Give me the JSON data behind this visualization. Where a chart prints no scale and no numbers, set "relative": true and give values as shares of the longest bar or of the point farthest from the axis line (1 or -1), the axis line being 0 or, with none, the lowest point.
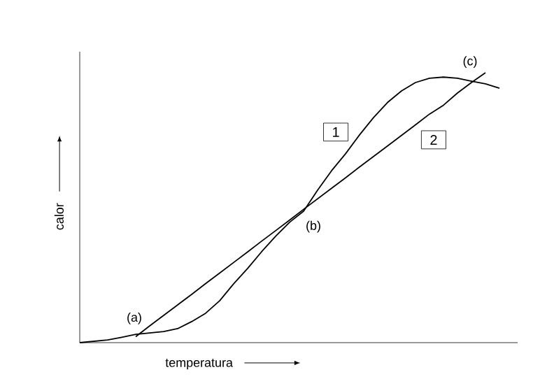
{
  "chart_data": {
    "type": "line",
    "relative": true,
    "xlabel": "temperatura",
    "ylabel": "calor",
    "categories": [
      null,
      null,
      null,
      null,
      null,
      null,
      null,
      null,
      null,
      null,
      null,
      null,
      null,
      null,
      null,
      null,
      null,
      null,
      null,
      null,
      null,
      null,
      null,
      null,
      null,
      null,
      null,
      null,
      null,
      null,
      null,
      null
    ],
    "series": [
      {
        "name": "1",
        "color": "#000000",
        "values": [
          0,
          0.005,
          0.01,
          0.02,
          0.031,
          0.036,
          0.041,
          0.052,
          0.078,
          0.109,
          0.155,
          0.218,
          0.275,
          0.337,
          0.394,
          0.446,
          0.487,
          0.565,
          0.637,
          0.7,
          0.77,
          0.834,
          0.89,
          0.933,
          0.964,
          0.98,
          0.984,
          0.98,
          0.969,
          0.959,
          0.943,
          null
        ]
      },
      {
        "name": "2",
        "color": "#000000",
        "values": [
          null,
          null,
          null,
          null,
          0.022,
          0.062,
          0.101,
          0.14,
          0.179,
          0.219,
          0.258,
          0.297,
          0.336,
          0.376,
          0.415,
          0.454,
          0.494,
          0.533,
          0.572,
          0.611,
          0.651,
          0.69,
          0.729,
          0.768,
          0.807,
          0.847,
          0.88,
          0.925,
          0.964,
          1,
          null,
          null
        ]
      }
    ],
    "annotations": [
      "(a)",
      "(b)",
      "(c)"
    ]
  }
}
